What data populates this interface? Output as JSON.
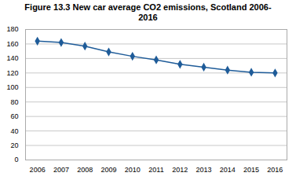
{
  "chart_data": {
    "type": "line",
    "title": "Figure 13.3 New car average CO2 emissions, Scotland 2006-\n2016",
    "x": [
      2006,
      2007,
      2008,
      2009,
      2010,
      2011,
      2012,
      2013,
      2014,
      2015,
      2016
    ],
    "values": [
      164,
      162,
      157,
      149,
      143,
      138,
      132,
      128,
      124,
      121,
      120
    ],
    "color": "#1F5C99",
    "marker": "diamond",
    "xlim": [
      2005.5,
      2016.5
    ],
    "xticks": [
      2006,
      2007,
      2008,
      2009,
      2010,
      2011,
      2012,
      2013,
      2014,
      2015,
      2016
    ],
    "ylim": [
      0,
      180
    ],
    "yticks": [
      0,
      20,
      40,
      60,
      80,
      100,
      120,
      140,
      160,
      180
    ],
    "grid": true
  }
}
